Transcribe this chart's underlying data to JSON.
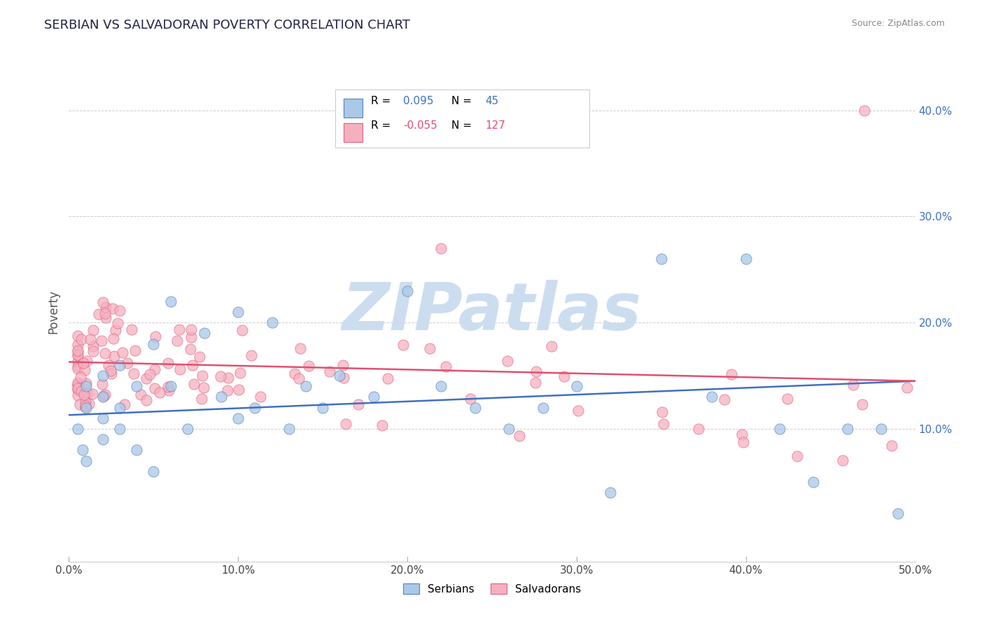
{
  "title": "SERBIAN VS SALVADORAN POVERTY CORRELATION CHART",
  "source": "Source: ZipAtlas.com",
  "ylabel": "Poverty",
  "xlim": [
    0.0,
    0.5
  ],
  "ylim": [
    -0.025,
    0.445
  ],
  "yticks": [
    0.1,
    0.2,
    0.3,
    0.4
  ],
  "ytick_labels_right": [
    "10.0%",
    "20.0%",
    "30.0%",
    "40.0%"
  ],
  "xtick_labels": [
    "0.0%",
    "10.0%",
    "20.0%",
    "30.0%",
    "40.0%",
    "50.0%"
  ],
  "xtick_vals": [
    0.0,
    0.1,
    0.2,
    0.3,
    0.4,
    0.5
  ],
  "serbian_R": 0.095,
  "serbian_N": 45,
  "salvadoran_R": -0.055,
  "salvadoran_N": 127,
  "serbian_color": "#aac8e8",
  "salvadoran_color": "#f5b0c0",
  "serbian_edge_color": "#5080c0",
  "salvadoran_edge_color": "#e06080",
  "serbian_line_color": "#4070c0",
  "salvadoran_line_color": "#e05070",
  "watermark": "ZIPatlas",
  "watermark_color": "#ccddf0",
  "legend_label_serbian": "Serbians",
  "legend_label_salvadoran": "Salvadorans",
  "background_color": "#ffffff",
  "grid_color": "#cccccc",
  "title_color": "#222244",
  "title_fontsize": 13,
  "right_tick_color": "#4070c0",
  "ylabel_color": "#555555",
  "source_color": "#888888"
}
